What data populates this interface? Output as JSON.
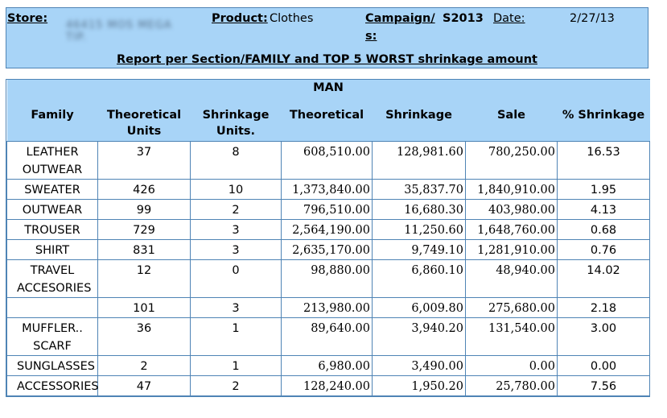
{
  "header": {
    "store_label": "Store:",
    "store_value": "46415 MOS MEGA TIP.",
    "product_label": "Product:",
    "product_value": "Clothes",
    "campaign_label": "Campaign/",
    "campaign_label2": "s:",
    "campaign_value": "S2013",
    "date_label": "Date:",
    "date_value": "2/27/13",
    "report_title": "Report per Section/FAMILY and TOP 5 WORST shrinkage amount"
  },
  "section": "MAN",
  "columns": [
    "Family",
    "Theoretical Units",
    "Shrinkage Units.",
    "Theoretical",
    "Shrinkage",
    "Sale",
    "% Shrinkage"
  ],
  "rows": [
    {
      "family": "LEATHER OUTWEAR",
      "theo_units": "37",
      "shrink_units": "8",
      "theoretical": "608,510.00",
      "shrinkage": "128,981.60",
      "sale": "780,250.00",
      "pct": "16.53",
      "top5": true
    },
    {
      "family": "SWEATER",
      "theo_units": "426",
      "shrink_units": "10",
      "theoretical": "1,373,840.00",
      "shrinkage": "35,837.70",
      "sale": "1,840,910.00",
      "pct": "1.95",
      "top5": true
    },
    {
      "family": "OUTWEAR",
      "theo_units": "99",
      "shrink_units": "2",
      "theoretical": "796,510.00",
      "shrinkage": "16,680.30",
      "sale": "403,980.00",
      "pct": "4.13",
      "top5": true
    },
    {
      "family": "TROUSER",
      "theo_units": "729",
      "shrink_units": "3",
      "theoretical": "2,564,190.00",
      "shrinkage": "11,250.60",
      "sale": "1,648,760.00",
      "pct": "0.68",
      "top5": true
    },
    {
      "family": "SHIRT",
      "theo_units": "831",
      "shrink_units": "3",
      "theoretical": "2,635,170.00",
      "shrinkage": "9,749.10",
      "sale": "1,281,910.00",
      "pct": "0.76",
      "top5": true
    },
    {
      "family": "TRAVEL ACCESORIES",
      "theo_units": "12",
      "shrink_units": "0",
      "theoretical": "98,880.00",
      "shrinkage": "6,860.10",
      "sale": "48,940.00",
      "pct": "14.02",
      "top5": false
    },
    {
      "family": "",
      "theo_units": "101",
      "shrink_units": "3",
      "theoretical": "213,980.00",
      "shrinkage": "6,009.80",
      "sale": "275,680.00",
      "pct": "2.18",
      "top5": false
    },
    {
      "family": "MUFFLER.. SCARF",
      "theo_units": "36",
      "shrink_units": "1",
      "theoretical": "89,640.00",
      "shrinkage": "3,940.20",
      "sale": "131,540.00",
      "pct": "3.00",
      "top5": false
    },
    {
      "family": "SUNGLASSES",
      "theo_units": "2",
      "shrink_units": "1",
      "theoretical": "6,980.00",
      "shrinkage": "3,490.00",
      "sale": "0.00",
      "pct": "0.00",
      "top5": false
    },
    {
      "family": "ACCESSORIES",
      "theo_units": "47",
      "shrink_units": "2",
      "theoretical": "128,240.00",
      "shrinkage": "1,950.20",
      "sale": "25,780.00",
      "pct": "7.56",
      "top5": false
    }
  ],
  "colors": {
    "header_bg": "#a8d4f7",
    "alt_col_bg": "#ddeefc",
    "highlight": "#ff0000",
    "border": "#4f84b5"
  }
}
